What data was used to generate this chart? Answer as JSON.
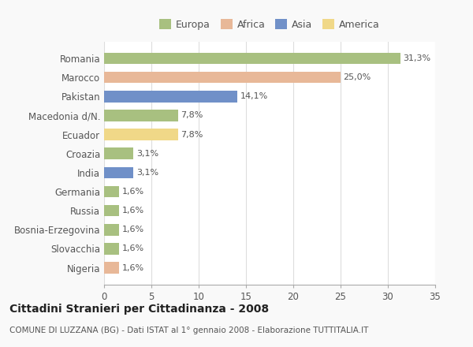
{
  "categories": [
    "Romania",
    "Marocco",
    "Pakistan",
    "Macedonia d/N.",
    "Ecuador",
    "Croazia",
    "India",
    "Germania",
    "Russia",
    "Bosnia-Erzegovina",
    "Slovacchia",
    "Nigeria"
  ],
  "values": [
    31.3,
    25.0,
    14.1,
    7.8,
    7.8,
    3.1,
    3.1,
    1.6,
    1.6,
    1.6,
    1.6,
    1.6
  ],
  "labels": [
    "31,3%",
    "25,0%",
    "14,1%",
    "7,8%",
    "7,8%",
    "3,1%",
    "3,1%",
    "1,6%",
    "1,6%",
    "1,6%",
    "1,6%",
    "1,6%"
  ],
  "colors": [
    "#a8c080",
    "#e8b898",
    "#7090c8",
    "#a8c080",
    "#f0d888",
    "#a8c080",
    "#7090c8",
    "#a8c080",
    "#a8c080",
    "#a8c080",
    "#a8c080",
    "#e8b898"
  ],
  "continent": [
    "Europa",
    "Africa",
    "Asia",
    "Europa",
    "America",
    "Europa",
    "Asia",
    "Europa",
    "Europa",
    "Europa",
    "Europa",
    "Africa"
  ],
  "legend_labels": [
    "Europa",
    "Africa",
    "Asia",
    "America"
  ],
  "legend_colors": [
    "#a8c080",
    "#e8b898",
    "#7090c8",
    "#f0d888"
  ],
  "title": "Cittadini Stranieri per Cittadinanza - 2008",
  "subtitle": "COMUNE DI LUZZANA (BG) - Dati ISTAT al 1° gennaio 2008 - Elaborazione TUTTITALIA.IT",
  "xlim": [
    0,
    35
  ],
  "xticks": [
    0,
    5,
    10,
    15,
    20,
    25,
    30,
    35
  ],
  "bg_color": "#f9f9f9",
  "plot_bg_color": "#ffffff",
  "grid_color": "#dddddd"
}
